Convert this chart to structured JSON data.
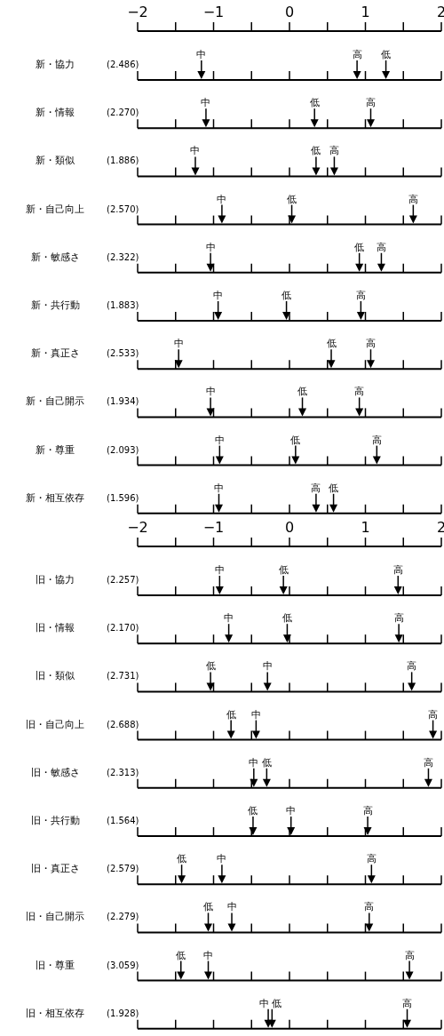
{
  "chart_data": [
    {
      "type": "scatter",
      "orientation": "horizontal",
      "legend": false,
      "categories": [
        "新・協力",
        "新・情報",
        "新・類似",
        "新・自己向上",
        "新・敏感さ",
        "新・共行動",
        "新・真正さ",
        "新・自己開示",
        "新・尊重",
        "新・相互依存"
      ],
      "series": [
        {
          "name": "中",
          "color": "#000000",
          "values": [
            -1.16,
            -1.1,
            -1.24,
            -0.89,
            -1.04,
            -0.94,
            -1.46,
            -1.04,
            -0.92,
            -0.93
          ]
        },
        {
          "name": "低",
          "color": "#000000",
          "values": [
            1.27,
            0.33,
            0.35,
            0.03,
            0.92,
            -0.04,
            0.55,
            0.17,
            0.08,
            0.58
          ]
        },
        {
          "name": "高",
          "color": "#000000",
          "values": [
            0.89,
            1.07,
            0.59,
            1.63,
            1.21,
            0.94,
            1.07,
            0.92,
            1.15,
            0.35
          ]
        }
      ],
      "annotations": [
        "(2.486)",
        "(2.270)",
        "(1.886)",
        "(2.570)",
        "(2.322)",
        "(1.883)",
        "(2.533)",
        "(1.934)",
        "(2.093)",
        "(1.596)"
      ],
      "xlim": [
        -2,
        2
      ],
      "xticks": [
        -2,
        {
          "value": -1.5,
          "label": null
        },
        -1,
        {
          "value": -0.5,
          "label": null
        },
        0,
        {
          "value": 0.5,
          "label": null
        },
        1,
        {
          "value": 1.5,
          "label": null
        },
        2
      ]
    },
    {
      "type": "scatter",
      "orientation": "horizontal",
      "legend": false,
      "categories": [
        "旧・協力",
        "旧・情報",
        "旧・類似",
        "旧・自己向上",
        "旧・敏感さ",
        "旧・共行動",
        "旧・真正さ",
        "旧・自己開示",
        "旧・尊重",
        "旧・相互依存"
      ],
      "series": [
        {
          "name": "中",
          "color": "#000000",
          "values": [
            -0.92,
            -0.8,
            -0.29,
            -0.44,
            -0.47,
            0.02,
            -0.89,
            -0.76,
            -1.07,
            -0.28
          ]
        },
        {
          "name": "低",
          "color": "#000000",
          "values": [
            -0.08,
            -0.03,
            -1.04,
            -0.77,
            -0.3,
            -0.48,
            -1.42,
            -1.07,
            -1.43,
            -0.23
          ]
        },
        {
          "name": "高",
          "color": "#000000",
          "values": [
            1.43,
            1.44,
            1.61,
            1.89,
            1.83,
            1.03,
            1.08,
            1.05,
            1.58,
            1.55
          ]
        }
      ],
      "annotations": [
        "(2.257)",
        "(2.170)",
        "(2.731)",
        "(2.688)",
        "(2.313)",
        "(1.564)",
        "(2.579)",
        "(2.279)",
        "(3.059)",
        "(1.928)"
      ],
      "xlim": [
        -2,
        2
      ],
      "xticks": [
        -2,
        {
          "value": -1.5,
          "label": null
        },
        -1,
        {
          "value": -0.5,
          "label": null
        },
        0,
        {
          "value": 0.5,
          "label": null
        },
        1,
        {
          "value": 1.5,
          "label": null
        },
        2
      ]
    }
  ]
}
